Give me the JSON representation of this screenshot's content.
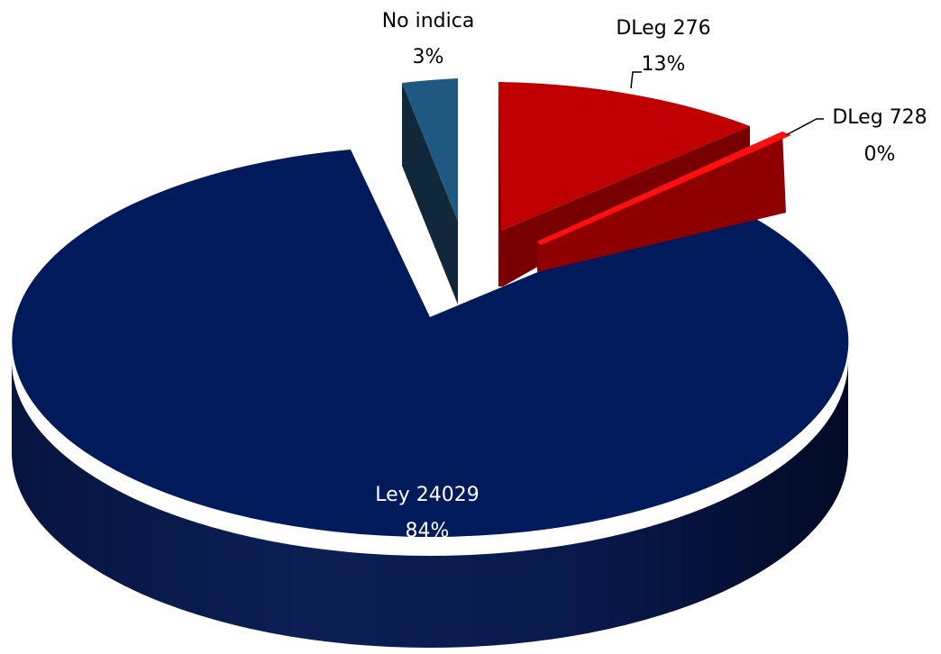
{
  "chart_data": {
    "type": "pie",
    "style": "3d-exploded",
    "title": "",
    "slices": [
      {
        "name": "Ley 24029",
        "value": 84,
        "label": "84%",
        "color": "#001a5c"
      },
      {
        "name": "No indica",
        "value": 3,
        "label": "3%",
        "color": "#1f5880"
      },
      {
        "name": "DLeg 276",
        "value": 13,
        "label": "13%",
        "color": "#c00000"
      },
      {
        "name": "DLeg 728",
        "value": 0,
        "label": "0%",
        "color": "#ff1010"
      }
    ],
    "legend": "none",
    "data_labels": "category-and-percent"
  }
}
